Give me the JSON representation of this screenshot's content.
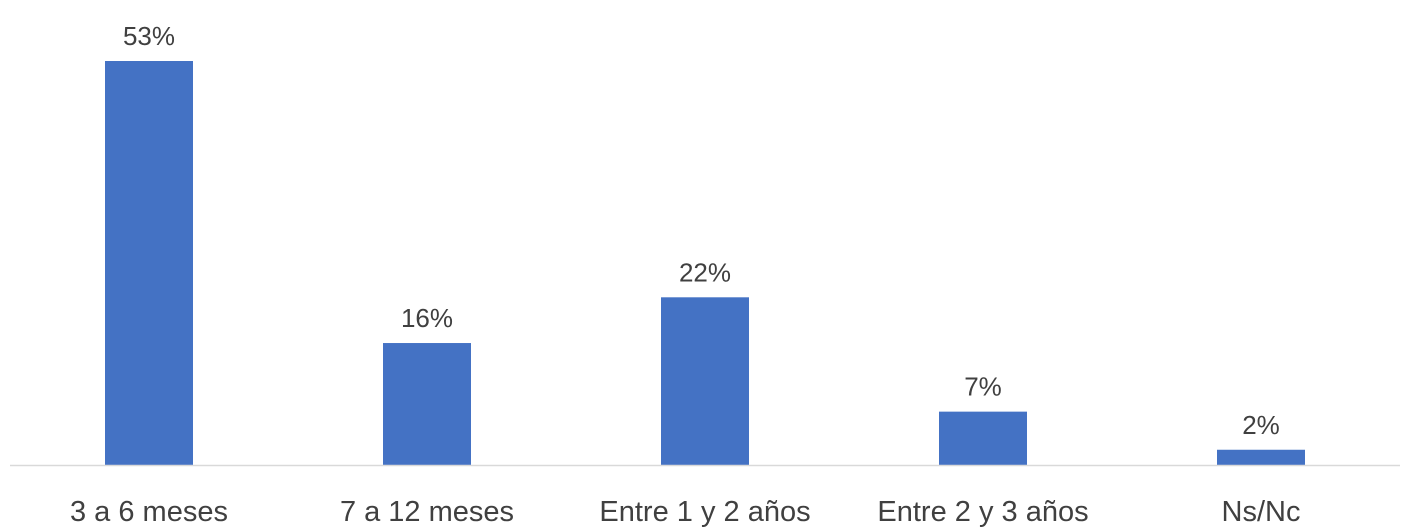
{
  "chart_data": {
    "type": "bar",
    "categories": [
      "3 a 6 meses",
      "7 a 12 meses",
      "Entre 1 y 2 años",
      "Entre 2 y 3 años",
      "Ns/Nc"
    ],
    "values": [
      53,
      16,
      22,
      7,
      2
    ],
    "value_labels": [
      "53%",
      "16%",
      "22%",
      "7%",
      "2%"
    ],
    "ylim": [
      0,
      53
    ],
    "bar_color": "#4472C4",
    "axis_color": "#D9D9D9",
    "text_color": "#404040",
    "grid": false,
    "legend": "none"
  }
}
